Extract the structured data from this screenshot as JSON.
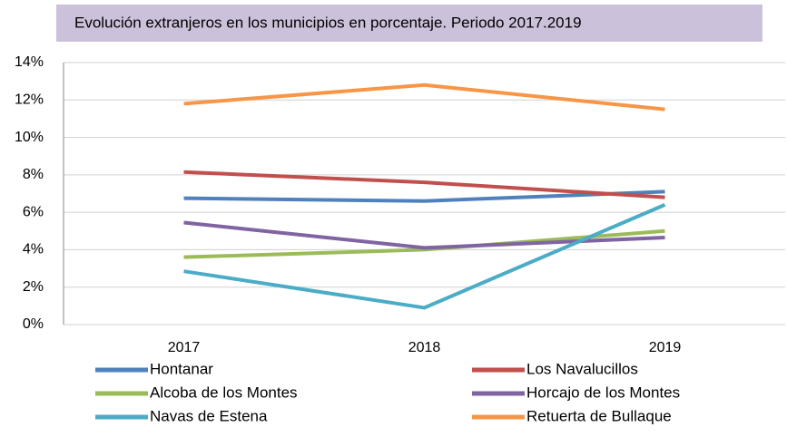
{
  "chart_data": {
    "type": "line",
    "title": "Evolución extranjeros en los municipios en porcentaje. Periodo 2017.2019",
    "categories": [
      "2017",
      "2018",
      "2019"
    ],
    "series": [
      {
        "name": "Hontanar",
        "color": "#4f81bd",
        "values": [
          6.75,
          6.6,
          7.1
        ]
      },
      {
        "name": "Los Navalucillos",
        "color": "#c0504d",
        "values": [
          8.15,
          7.6,
          6.8
        ]
      },
      {
        "name": "Alcoba de los Montes",
        "color": "#9bbb59",
        "values": [
          3.6,
          4.0,
          5.0
        ]
      },
      {
        "name": "Horcajo de los Montes",
        "color": "#8064a2",
        "values": [
          5.45,
          4.1,
          4.65
        ]
      },
      {
        "name": "Navas de Estena",
        "color": "#4bacc6",
        "values": [
          2.85,
          0.9,
          6.4
        ]
      },
      {
        "name": "Retuerta de Bullaque",
        "color": "#f79646",
        "values": [
          11.8,
          12.8,
          11.5
        ]
      }
    ],
    "ylim": [
      0,
      14
    ],
    "yticks": [
      {
        "value": 0,
        "label": "0%"
      },
      {
        "value": 2,
        "label": "2%"
      },
      {
        "value": 4,
        "label": "4%"
      },
      {
        "value": 6,
        "label": "6%"
      },
      {
        "value": 8,
        "label": "8%"
      },
      {
        "value": 10,
        "label": "10%"
      },
      {
        "value": 12,
        "label": "12%"
      },
      {
        "value": 14,
        "label": "14%"
      }
    ],
    "grid": true
  }
}
